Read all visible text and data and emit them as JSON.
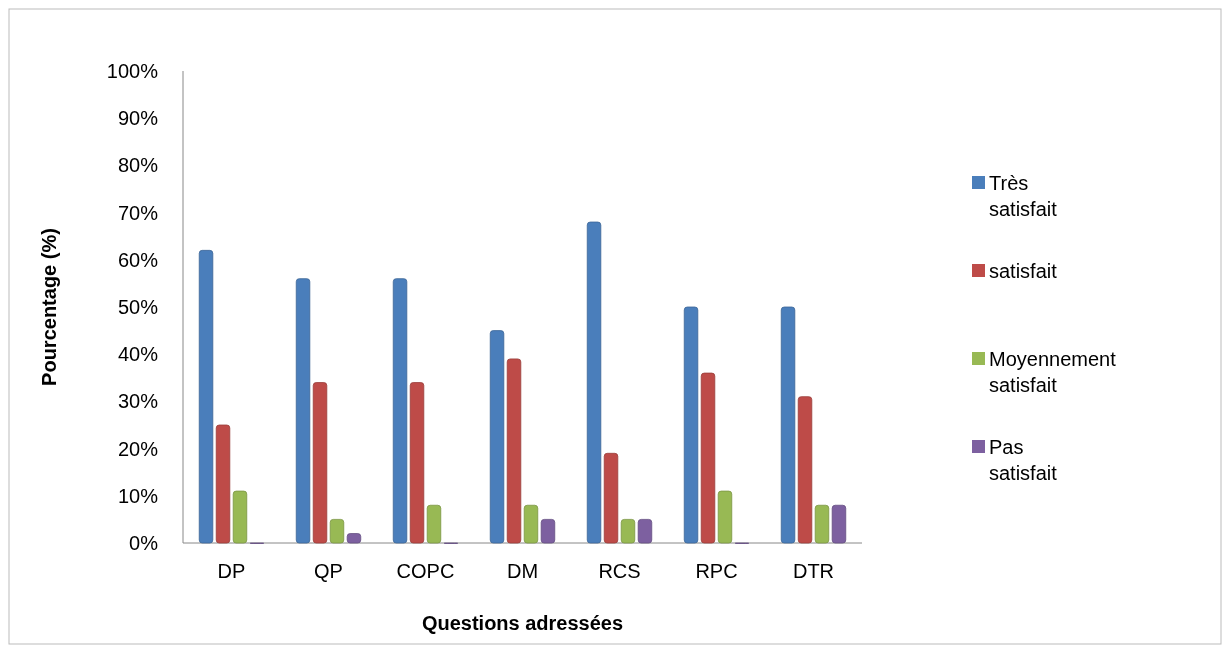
{
  "chart_data": {
    "type": "bar",
    "xlabel": "Questions adressées",
    "ylabel": "Pourcentage (%)",
    "categories": [
      "DP",
      "QP",
      "COPC",
      "DM",
      "RCS",
      "RPC",
      "DTR"
    ],
    "series": [
      {
        "name": "Très satisfait",
        "color": "#4a7ebb",
        "values": [
          62,
          56,
          56,
          45,
          68,
          50,
          50
        ]
      },
      {
        "name": " satisfait",
        "color": "#be4b48",
        "values": [
          25,
          34,
          34,
          39,
          19,
          36,
          31
        ]
      },
      {
        "name": "Moyennement satisfait",
        "color": "#98b954",
        "values": [
          11,
          5,
          8,
          8,
          5,
          11,
          8
        ]
      },
      {
        "name": "Pas satisfait",
        "color": "#7d60a0",
        "values": [
          0,
          2,
          0,
          5,
          5,
          0,
          8
        ]
      }
    ],
    "ylim": [
      0,
      100
    ],
    "yticks": [
      {
        "value": 0,
        "label": "0%"
      },
      {
        "value": 10,
        "label": "10%"
      },
      {
        "value": 20,
        "label": "20%"
      },
      {
        "value": 30,
        "label": "30%"
      },
      {
        "value": 40,
        "label": "40%"
      },
      {
        "value": 50,
        "label": "50%"
      },
      {
        "value": 60,
        "label": "60%"
      },
      {
        "value": 70,
        "label": "70%"
      },
      {
        "value": 80,
        "label": "80%"
      },
      {
        "value": 90,
        "label": "90%"
      },
      {
        "value": 100,
        "label": "100%"
      }
    ],
    "legend": "right"
  }
}
